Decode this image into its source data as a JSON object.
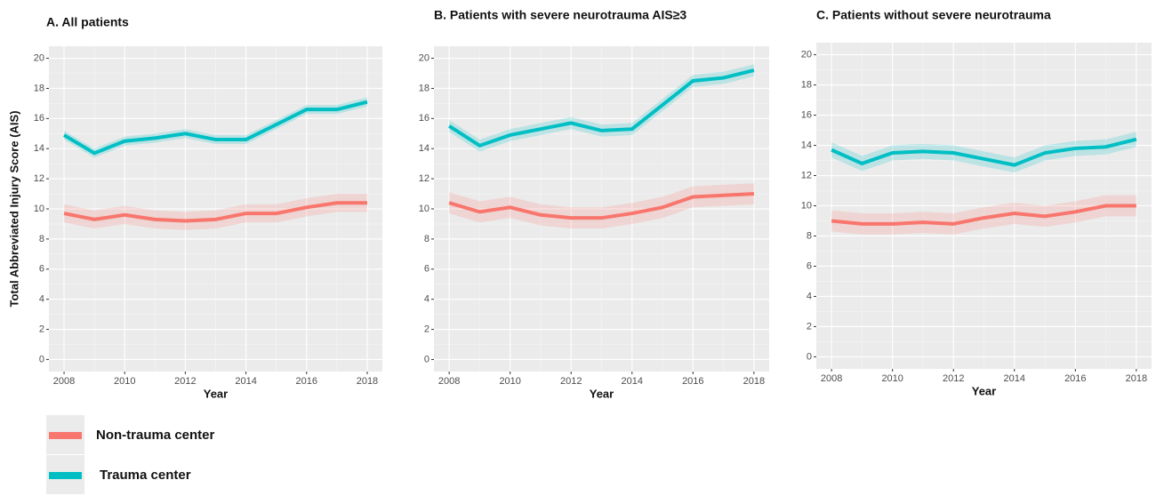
{
  "chart_data": [
    {
      "type": "line",
      "title": "A. All patients",
      "x_label": "Year",
      "y_label": "Total Abbreviated Injury Score (AIS)",
      "x": [
        2008,
        2009,
        2010,
        2011,
        2012,
        2013,
        2014,
        2015,
        2016,
        2017,
        2018
      ],
      "series": [
        {
          "name": "Non-trauma center",
          "color": "#f8766d",
          "band": 0.6,
          "values": [
            9.7,
            9.3,
            9.6,
            9.3,
            9.2,
            9.3,
            9.7,
            9.7,
            10.1,
            10.4,
            10.4
          ]
        },
        {
          "name": "Trauma center",
          "color": "#00bfc4",
          "band": 0.3,
          "values": [
            14.9,
            13.7,
            14.5,
            14.7,
            15.0,
            14.6,
            14.6,
            15.6,
            16.6,
            16.6,
            17.1
          ]
        }
      ],
      "xlim": [
        2007.5,
        2018.5
      ],
      "xticks": [
        2008,
        2010,
        2012,
        2014,
        2016,
        2018
      ],
      "ylim": [
        -0.8,
        20.8
      ],
      "yticks": [
        0,
        2,
        4,
        6,
        8,
        10,
        12,
        14,
        16,
        18,
        20
      ],
      "grid": true
    },
    {
      "type": "line",
      "title": "B. Patients with severe neurotrauma AIS≥3",
      "x_label": "Year",
      "x": [
        2008,
        2009,
        2010,
        2011,
        2012,
        2013,
        2014,
        2015,
        2016,
        2017,
        2018
      ],
      "series": [
        {
          "name": "Non-trauma center",
          "color": "#f8766d",
          "band": 0.7,
          "values": [
            10.4,
            9.8,
            10.1,
            9.6,
            9.4,
            9.4,
            9.7,
            10.1,
            10.8,
            10.9,
            11.0
          ]
        },
        {
          "name": "Trauma center",
          "color": "#00bfc4",
          "band": 0.4,
          "values": [
            15.5,
            14.2,
            14.9,
            15.3,
            15.7,
            15.2,
            15.3,
            16.9,
            18.5,
            18.7,
            19.2
          ]
        }
      ],
      "xlim": [
        2007.5,
        2018.5
      ],
      "xticks": [
        2008,
        2010,
        2012,
        2014,
        2016,
        2018
      ],
      "ylim": [
        -0.8,
        20.8
      ],
      "yticks": [
        0,
        2,
        4,
        6,
        8,
        10,
        12,
        14,
        16,
        18,
        20
      ],
      "grid": true
    },
    {
      "type": "line",
      "title": "C. Patients without severe neurotrauma",
      "x_label": "Year",
      "x": [
        2008,
        2009,
        2010,
        2011,
        2012,
        2013,
        2014,
        2015,
        2016,
        2017,
        2018
      ],
      "series": [
        {
          "name": "Non-trauma center",
          "color": "#f8766d",
          "band": 0.7,
          "values": [
            9.0,
            8.8,
            8.8,
            8.9,
            8.8,
            9.2,
            9.5,
            9.3,
            9.6,
            10.0,
            10.0
          ]
        },
        {
          "name": "Trauma center",
          "color": "#00bfc4",
          "band": 0.5,
          "values": [
            13.7,
            12.8,
            13.5,
            13.6,
            13.5,
            13.1,
            12.7,
            13.5,
            13.8,
            13.9,
            14.4
          ]
        }
      ],
      "xlim": [
        2007.5,
        2018.5
      ],
      "xticks": [
        2008,
        2010,
        2012,
        2014,
        2016,
        2018
      ],
      "ylim": [
        -0.8,
        20.8
      ],
      "yticks": [
        0,
        2,
        4,
        6,
        8,
        10,
        12,
        14,
        16,
        18,
        20
      ],
      "grid": true
    }
  ]
}
